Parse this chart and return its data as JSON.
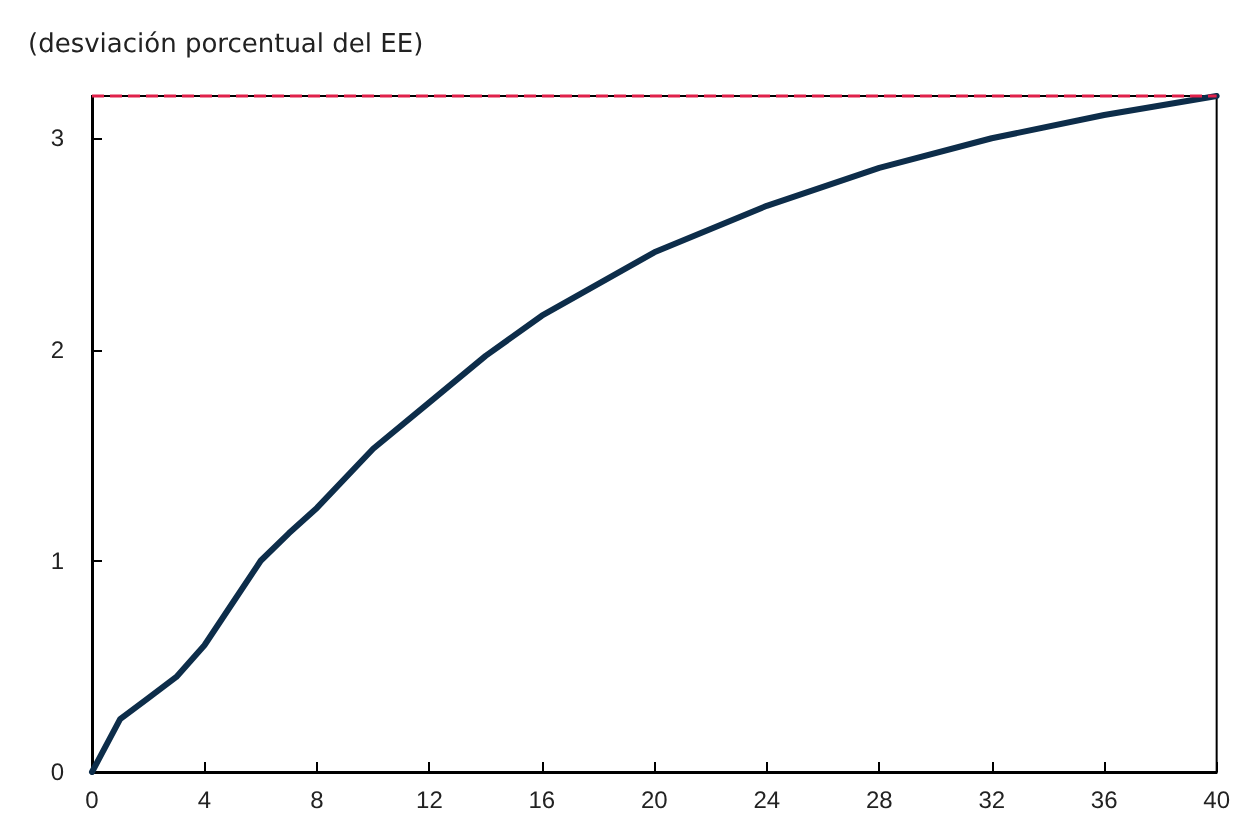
{
  "chart_data": {
    "type": "line",
    "ylabel": "(desviación porcentual del EE)",
    "x": [
      0,
      1,
      2,
      3,
      4,
      5,
      6,
      7,
      8,
      10,
      12,
      14,
      16,
      20,
      24,
      28,
      32,
      36,
      40
    ],
    "series": [
      {
        "color": "#0d2d4a",
        "values": [
          0,
          0.25,
          0.35,
          0.45,
          0.6,
          0.8,
          1.0,
          1.13,
          1.25,
          1.53,
          1.75,
          1.97,
          2.16,
          2.46,
          2.68,
          2.86,
          3.0,
          3.11,
          3.2
        ]
      }
    ],
    "xlim": [
      0,
      40
    ],
    "xticks": [
      0,
      4,
      8,
      12,
      16,
      20,
      24,
      28,
      32,
      36,
      40
    ],
    "ylim": [
      0,
      3.2
    ],
    "yticks": [
      0,
      1,
      2,
      3
    ],
    "ref_lines": [
      {
        "axis": "y",
        "value": 3.2,
        "color": "#e0204a",
        "line_style": "dashed"
      }
    ],
    "marker": "none",
    "line_style": "solid"
  }
}
